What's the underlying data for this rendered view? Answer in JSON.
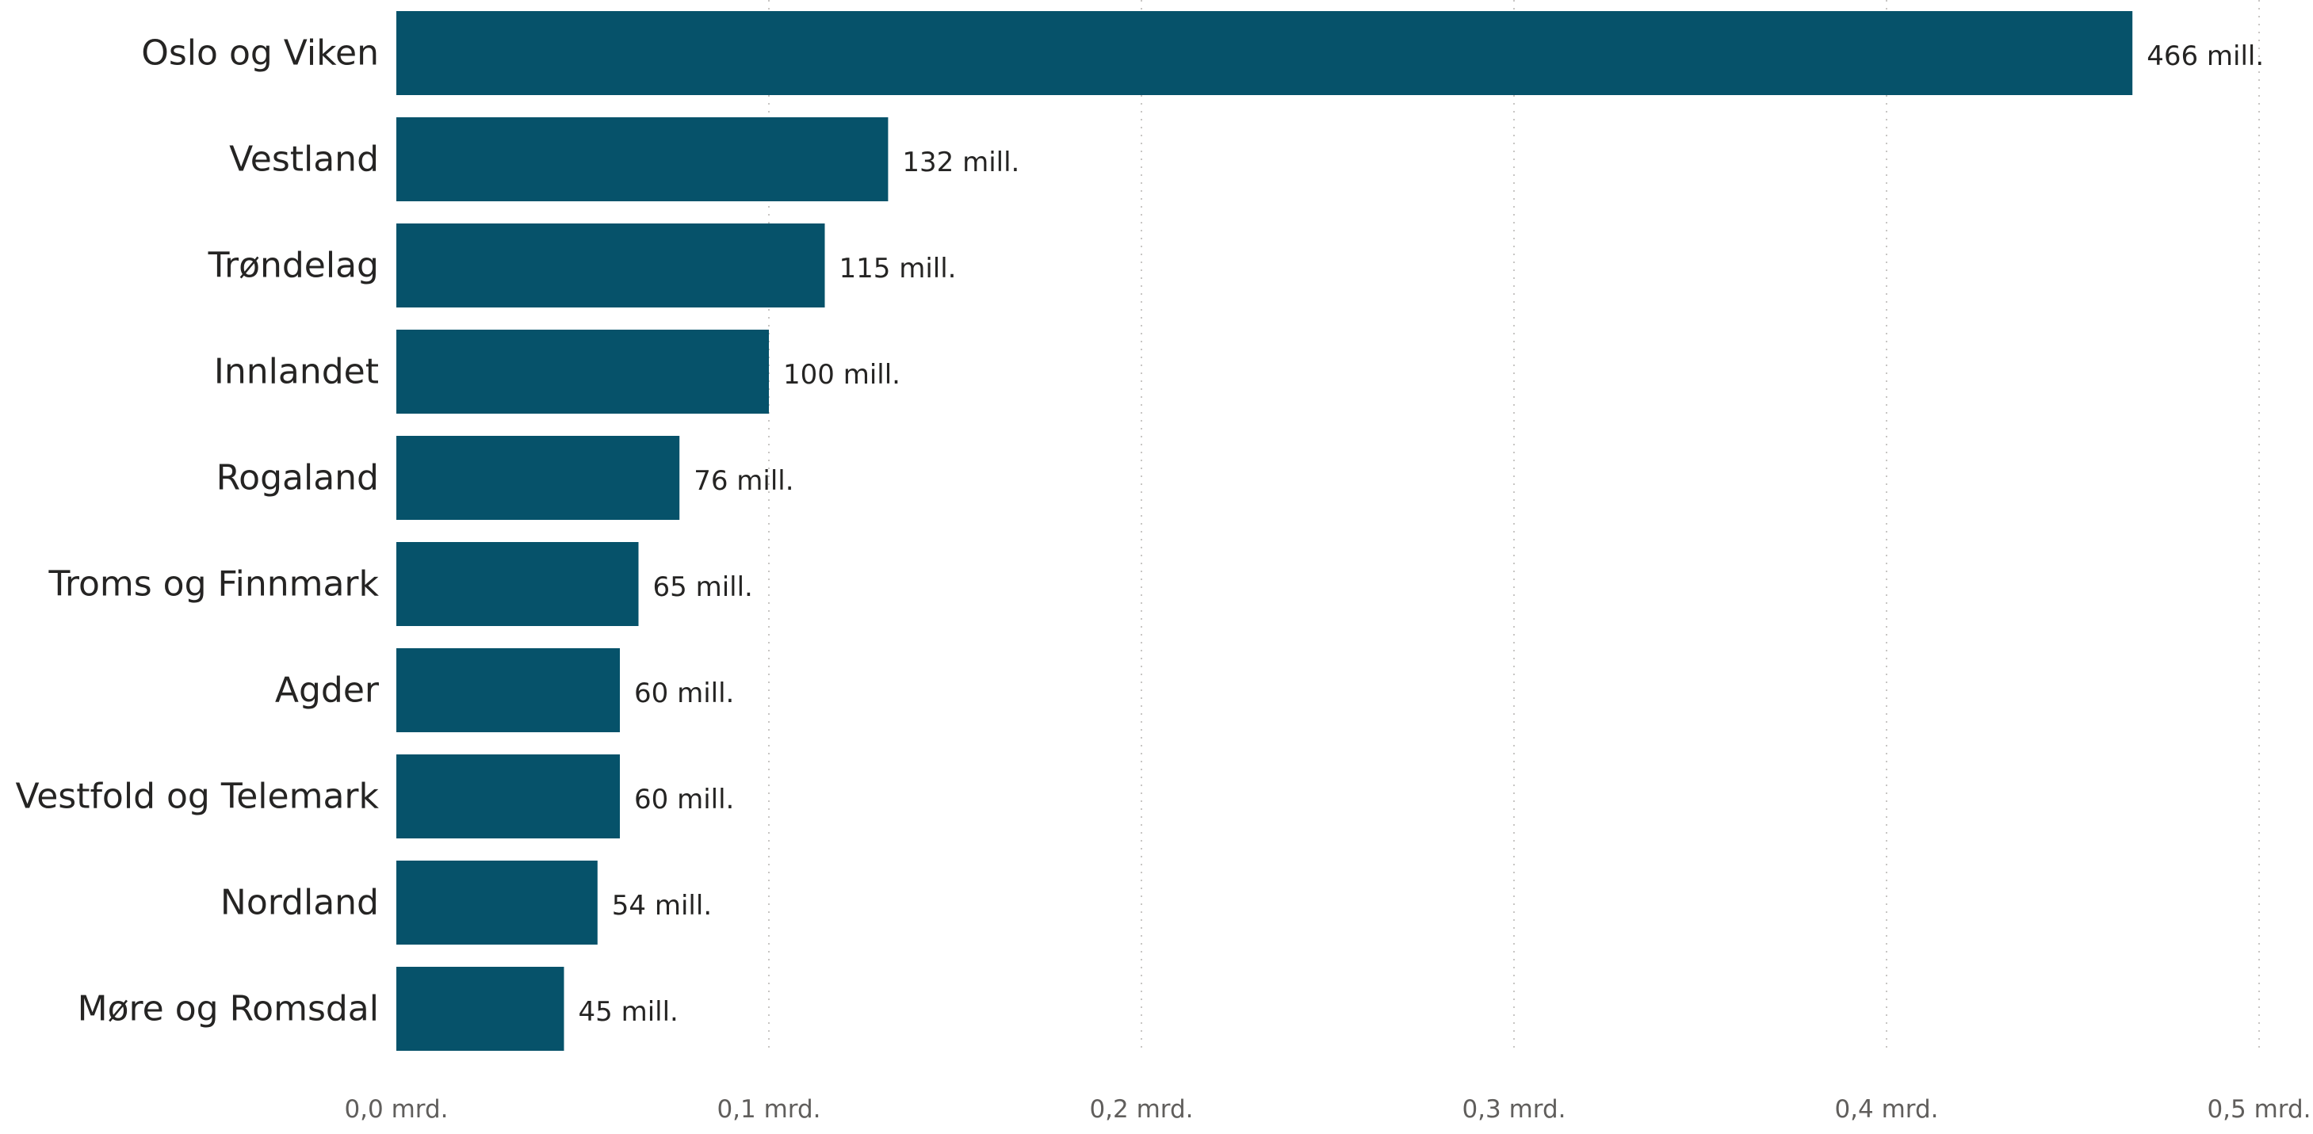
{
  "chart_data": {
    "type": "bar",
    "orientation": "horizontal",
    "categories": [
      "Oslo og Viken",
      "Vestland",
      "Trøndelag",
      "Innlandet",
      "Rogaland",
      "Troms og Finnmark",
      "Agder",
      "Vestfold og Telemark",
      "Nordland",
      "Møre og Romsdal"
    ],
    "values": [
      466,
      132,
      115,
      100,
      76,
      65,
      60,
      60,
      54,
      45
    ],
    "value_unit": "mill.",
    "data_labels": [
      "466 mill.",
      "132 mill.",
      "115 mill.",
      "100 mill.",
      "76 mill.",
      "65 mill.",
      "60 mill.",
      "60 mill.",
      "54 mill.",
      "45 mill."
    ],
    "xlim": [
      0,
      500
    ],
    "x_ticks": [
      0,
      100,
      200,
      300,
      400,
      500
    ],
    "x_tick_labels": [
      "0,0 mrd.",
      "0,1 mrd.",
      "0,2 mrd.",
      "0,3 mrd.",
      "0,4 mrd.",
      "0,5 mrd."
    ],
    "title": "",
    "xlabel": "",
    "ylabel": "",
    "grid": "vertical dotted",
    "legend": "none",
    "colors": {
      "bar": "#06526a",
      "gridline": "#c8c6c4",
      "category_text": "#252423",
      "tick_text": "#605e5c"
    }
  }
}
